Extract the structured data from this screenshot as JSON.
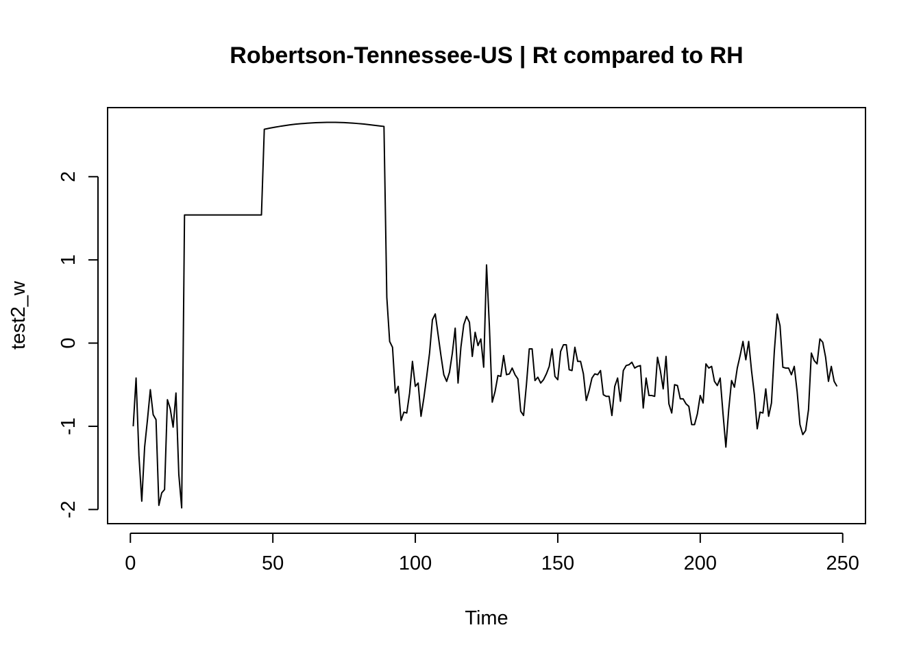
{
  "chart_data": {
    "type": "line",
    "title": "Robertson-Tennessee-US | Rt compared to RH",
    "xlabel": "Time",
    "ylabel": "test2_w",
    "xlim": [
      -8,
      258
    ],
    "ylim": [
      -2.17,
      2.83
    ],
    "x_ticks": [
      0,
      50,
      100,
      150,
      200,
      250
    ],
    "y_ticks": [
      -2,
      -1,
      0,
      1,
      2
    ],
    "grid": false,
    "line_color": "#000000",
    "series": [
      {
        "x": [
          1,
          2,
          3,
          4,
          5,
          6,
          7,
          8,
          9,
          10,
          11,
          12,
          13,
          14,
          15,
          16,
          17,
          18,
          19,
          20,
          21,
          22,
          23,
          24,
          25,
          26,
          27,
          28,
          29,
          30,
          31,
          32,
          33,
          34,
          35,
          36,
          37,
          38,
          39,
          40,
          41,
          42,
          43,
          44,
          45,
          46,
          47,
          48,
          49,
          50,
          51,
          52,
          53,
          54,
          55,
          56,
          57,
          58,
          59,
          60,
          61,
          62,
          63,
          64,
          65,
          66,
          67,
          68,
          69,
          70,
          71,
          72,
          73,
          74,
          75,
          76,
          77,
          78,
          79,
          80,
          81,
          82,
          83,
          84,
          85,
          86,
          87,
          88,
          89,
          90,
          91,
          92,
          93,
          94,
          95,
          96,
          97,
          98,
          99,
          100,
          101,
          102,
          103,
          104,
          105,
          106,
          107,
          108,
          109,
          110,
          111,
          112,
          113,
          114,
          115,
          116,
          117,
          118,
          119,
          120,
          121,
          122,
          123,
          124,
          125,
          126,
          127,
          128,
          129,
          130,
          131,
          132,
          133,
          134,
          135,
          136,
          137,
          138,
          139,
          140,
          141,
          142,
          143,
          144,
          145,
          146,
          147,
          148,
          149,
          150,
          151,
          152,
          153,
          154,
          155,
          156,
          157,
          158,
          159,
          160,
          161,
          162,
          163,
          164,
          165,
          166,
          167,
          168,
          169,
          170,
          171,
          172,
          173,
          174,
          175,
          176,
          177,
          178,
          179,
          180,
          181,
          182,
          183,
          184,
          185,
          186,
          187,
          188,
          189,
          190,
          191,
          192,
          193,
          194,
          195,
          196,
          197,
          198,
          199,
          200,
          201,
          202,
          203,
          204,
          205,
          206,
          207,
          208,
          209,
          210,
          211,
          212,
          213,
          214,
          215,
          216,
          217,
          218,
          219,
          220,
          221,
          222,
          223,
          224,
          225,
          226,
          227,
          228,
          229,
          230,
          231,
          232,
          233,
          234,
          235,
          236,
          237,
          238,
          239,
          240,
          241,
          242,
          243,
          244,
          245,
          246,
          247,
          248
        ],
        "values": [
          -1.0,
          -0.42,
          -1.35,
          -1.9,
          -1.25,
          -0.92,
          -0.56,
          -0.86,
          -0.92,
          -1.95,
          -1.8,
          -1.76,
          -0.68,
          -0.79,
          -1.01,
          -0.6,
          -1.58,
          -1.98,
          1.54,
          1.54,
          1.54,
          1.54,
          1.54,
          1.54,
          1.54,
          1.54,
          1.54,
          1.54,
          1.54,
          1.54,
          1.54,
          1.54,
          1.54,
          1.54,
          1.54,
          1.54,
          1.54,
          1.54,
          1.54,
          1.54,
          1.54,
          1.54,
          1.54,
          1.54,
          1.54,
          1.54,
          2.57,
          2.577,
          2.584,
          2.59,
          2.596,
          2.602,
          2.608,
          2.613,
          2.618,
          2.623,
          2.627,
          2.631,
          2.634,
          2.637,
          2.64,
          2.643,
          2.645,
          2.647,
          2.649,
          2.65,
          2.651,
          2.652,
          2.653,
          2.653,
          2.653,
          2.653,
          2.652,
          2.651,
          2.65,
          2.648,
          2.646,
          2.644,
          2.641,
          2.638,
          2.635,
          2.632,
          2.628,
          2.624,
          2.62,
          2.616,
          2.612,
          2.608,
          2.604,
          0.55,
          0.02,
          -0.05,
          -0.6,
          -0.52,
          -0.93,
          -0.83,
          -0.84,
          -0.6,
          -0.22,
          -0.52,
          -0.48,
          -0.88,
          -0.66,
          -0.4,
          -0.12,
          0.28,
          0.35,
          0.1,
          -0.15,
          -0.38,
          -0.46,
          -0.35,
          -0.12,
          0.18,
          -0.48,
          -0.05,
          0.22,
          0.32,
          0.25,
          -0.16,
          0.13,
          -0.03,
          0.05,
          -0.29,
          0.94,
          0.2,
          -0.71,
          -0.58,
          -0.39,
          -0.4,
          -0.15,
          -0.38,
          -0.37,
          -0.3,
          -0.38,
          -0.43,
          -0.82,
          -0.87,
          -0.5,
          -0.07,
          -0.07,
          -0.45,
          -0.41,
          -0.48,
          -0.44,
          -0.37,
          -0.28,
          -0.07,
          -0.4,
          -0.44,
          -0.1,
          -0.02,
          -0.02,
          -0.32,
          -0.33,
          -0.05,
          -0.22,
          -0.22,
          -0.37,
          -0.69,
          -0.57,
          -0.42,
          -0.37,
          -0.38,
          -0.33,
          -0.62,
          -0.64,
          -0.64,
          -0.87,
          -0.52,
          -0.42,
          -0.7,
          -0.33,
          -0.27,
          -0.26,
          -0.23,
          -0.3,
          -0.28,
          -0.27,
          -0.78,
          -0.42,
          -0.63,
          -0.63,
          -0.64,
          -0.17,
          -0.33,
          -0.55,
          -0.16,
          -0.73,
          -0.84,
          -0.5,
          -0.51,
          -0.67,
          -0.67,
          -0.73,
          -0.76,
          -0.98,
          -0.98,
          -0.85,
          -0.63,
          -0.72,
          -0.25,
          -0.3,
          -0.28,
          -0.46,
          -0.51,
          -0.42,
          -0.85,
          -1.25,
          -0.8,
          -0.45,
          -0.53,
          -0.3,
          -0.15,
          0.02,
          -0.2,
          0.02,
          -0.33,
          -0.62,
          -1.03,
          -0.83,
          -0.84,
          -0.55,
          -0.88,
          -0.72,
          -0.1,
          0.35,
          0.21,
          -0.29,
          -0.3,
          -0.3,
          -0.38,
          -0.28,
          -0.58,
          -0.98,
          -1.1,
          -1.05,
          -0.8,
          -0.12,
          -0.21,
          -0.25,
          0.05,
          0.01,
          -0.17,
          -0.46,
          -0.28,
          -0.46,
          -0.52
        ]
      }
    ]
  }
}
